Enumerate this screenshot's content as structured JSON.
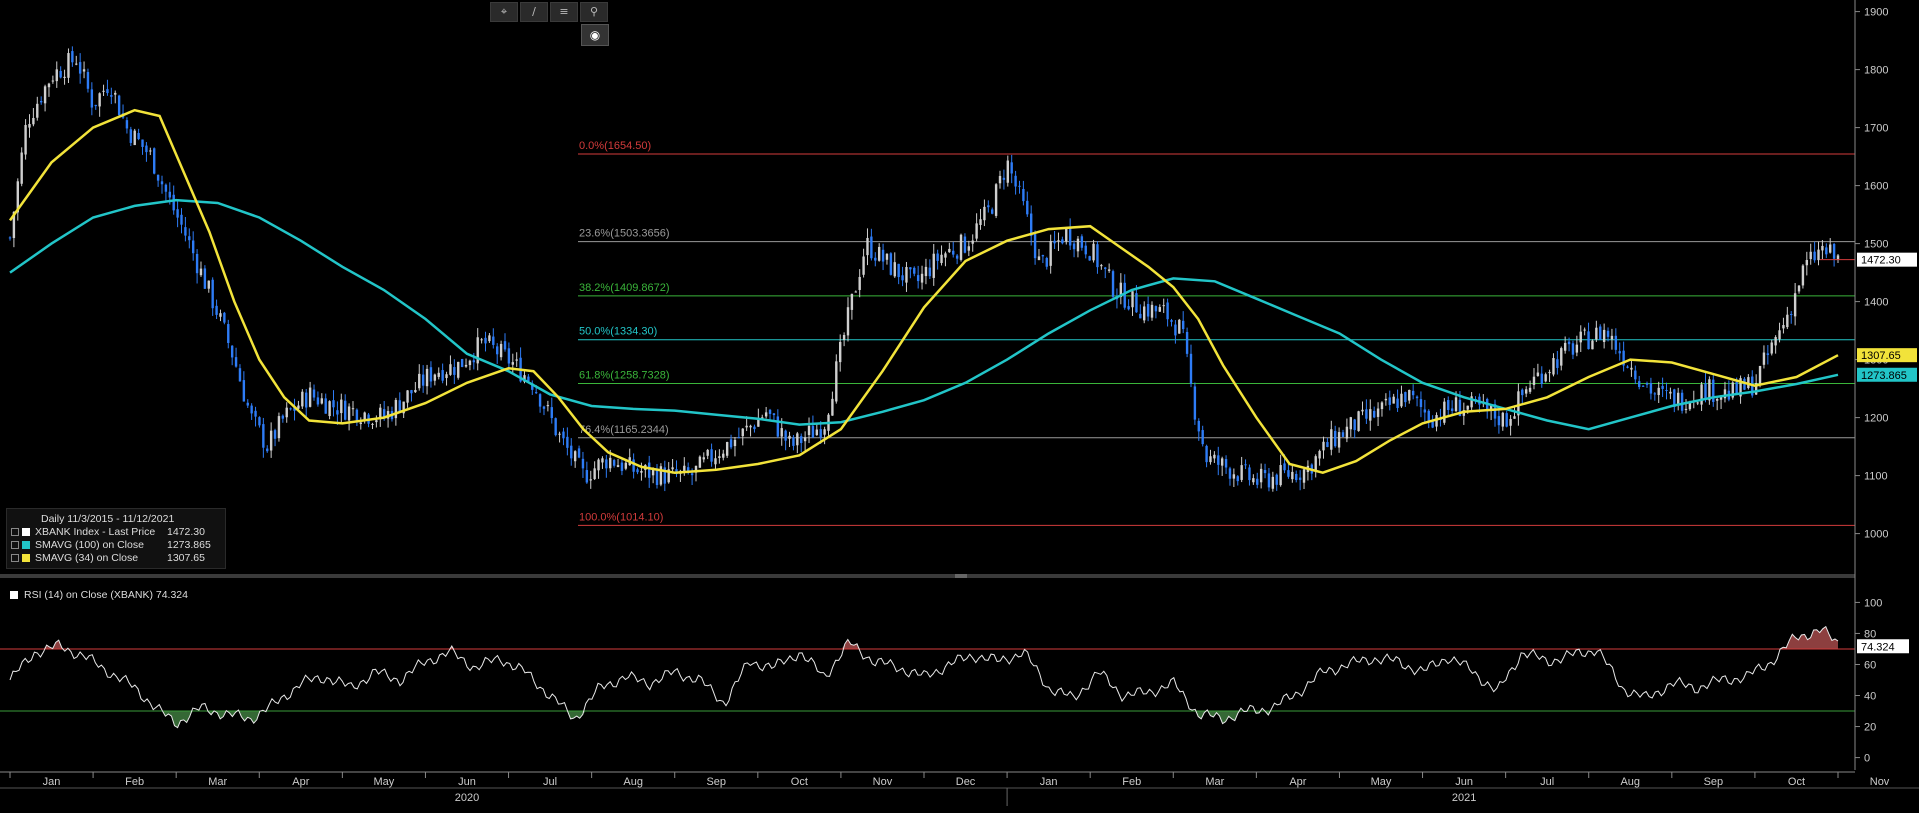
{
  "toolbar": {
    "tools": [
      {
        "name": "crosshair-tool",
        "icon": "crosshair-icon",
        "glyph": "⌖"
      },
      {
        "name": "draw-tool",
        "icon": "pencil-icon",
        "glyph": "∕"
      },
      {
        "name": "menu-tool",
        "icon": "menu-icon",
        "glyph": "≡"
      },
      {
        "name": "zoom-tool",
        "icon": "search-icon",
        "glyph": "⚲"
      }
    ],
    "active_tool_glyph": "◉"
  },
  "legend": {
    "header": "Daily 11/3/2015 - 11/12/2021",
    "items": [
      {
        "label": "XBANK Index - Last Price",
        "value": "1472.30",
        "color": "#ffffff"
      },
      {
        "label": "SMAVG (100)  on Close",
        "value": "1273.865",
        "color": "#22c5c8"
      },
      {
        "label": "SMAVG (34)  on Close",
        "value": "1307.65",
        "color": "#f2e33a"
      }
    ]
  },
  "rsi_legend": "RSI (14)  on Close (XBANK) 74.324",
  "colors": {
    "price_up": "#cfcfcf",
    "price_down": "#2e7cf6",
    "sma100": "#22c5c8",
    "sma34": "#f2e33a",
    "rsi_line": "#e8e8e8",
    "rsi_overbought": "#d33b3b",
    "rsi_oversold": "#3a9b3a",
    "fib_0": "#d33b3b",
    "fib_236": "#9a9a9a",
    "fib_382": "#3ab53a",
    "fib_50": "#22c5c8",
    "fib_618": "#3ab53a",
    "fib_764": "#9a9a9a",
    "fib_100": "#d33b3b"
  },
  "chart_data": [
    {
      "type": "candlestick",
      "title": "",
      "ylim": [
        920,
        1920
      ],
      "y_ticks": [
        1000,
        1100,
        1200,
        1300,
        1400,
        1500,
        1600,
        1700,
        1800,
        1900
      ],
      "x_month_labels": [
        "Jan",
        "Feb",
        "Mar",
        "Apr",
        "May",
        "Jun",
        "Jul",
        "Aug",
        "Sep",
        "Oct",
        "Nov",
        "Dec",
        "Jan",
        "Feb",
        "Mar",
        "Apr",
        "May",
        "Jun",
        "Jul",
        "Aug",
        "Sep",
        "Oct",
        "Nov"
      ],
      "x_year_labels": [
        {
          "label": "2020",
          "month_index": 5.5
        },
        {
          "label": "2021",
          "month_index": 17.5
        }
      ],
      "grid": false,
      "price_path_monthly": [
        {
          "m": 0.0,
          "v": 1510
        },
        {
          "m": 0.2,
          "v": 1710
        },
        {
          "m": 0.5,
          "v": 1790
        },
        {
          "m": 0.8,
          "v": 1820
        },
        {
          "m": 1.0,
          "v": 1740
        },
        {
          "m": 1.2,
          "v": 1780
        },
        {
          "m": 1.4,
          "v": 1700
        },
        {
          "m": 1.7,
          "v": 1650
        },
        {
          "m": 1.9,
          "v": 1580
        },
        {
          "m": 2.1,
          "v": 1520
        },
        {
          "m": 2.3,
          "v": 1450
        },
        {
          "m": 2.5,
          "v": 1380
        },
        {
          "m": 2.7,
          "v": 1300
        },
        {
          "m": 2.9,
          "v": 1200
        },
        {
          "m": 3.1,
          "v": 1150
        },
        {
          "m": 3.3,
          "v": 1200
        },
        {
          "m": 3.6,
          "v": 1240
        },
        {
          "m": 3.9,
          "v": 1220
        },
        {
          "m": 4.2,
          "v": 1210
        },
        {
          "m": 4.5,
          "v": 1200
        },
        {
          "m": 4.8,
          "v": 1240
        },
        {
          "m": 5.1,
          "v": 1280
        },
        {
          "m": 5.4,
          "v": 1290
        },
        {
          "m": 5.7,
          "v": 1330
        },
        {
          "m": 6.0,
          "v": 1300
        },
        {
          "m": 6.3,
          "v": 1260
        },
        {
          "m": 6.6,
          "v": 1170
        },
        {
          "m": 6.9,
          "v": 1100
        },
        {
          "m": 7.2,
          "v": 1130
        },
        {
          "m": 7.5,
          "v": 1110
        },
        {
          "m": 7.9,
          "v": 1100
        },
        {
          "m": 8.2,
          "v": 1100
        },
        {
          "m": 8.5,
          "v": 1140
        },
        {
          "m": 8.8,
          "v": 1170
        },
        {
          "m": 9.1,
          "v": 1210
        },
        {
          "m": 9.4,
          "v": 1150
        },
        {
          "m": 9.8,
          "v": 1190
        },
        {
          "m": 10.1,
          "v": 1380
        },
        {
          "m": 10.3,
          "v": 1500
        },
        {
          "m": 10.6,
          "v": 1460
        },
        {
          "m": 10.9,
          "v": 1430
        },
        {
          "m": 11.2,
          "v": 1480
        },
        {
          "m": 11.5,
          "v": 1500
        },
        {
          "m": 11.8,
          "v": 1560
        },
        {
          "m": 12.0,
          "v": 1640
        },
        {
          "m": 12.2,
          "v": 1560
        },
        {
          "m": 12.4,
          "v": 1460
        },
        {
          "m": 12.7,
          "v": 1520
        },
        {
          "m": 13.0,
          "v": 1490
        },
        {
          "m": 13.3,
          "v": 1420
        },
        {
          "m": 13.6,
          "v": 1390
        },
        {
          "m": 13.9,
          "v": 1380
        },
        {
          "m": 14.1,
          "v": 1350
        },
        {
          "m": 14.25,
          "v": 1220
        },
        {
          "m": 14.4,
          "v": 1130
        },
        {
          "m": 14.7,
          "v": 1110
        },
        {
          "m": 15.0,
          "v": 1090
        },
        {
          "m": 15.3,
          "v": 1100
        },
        {
          "m": 15.6,
          "v": 1110
        },
        {
          "m": 15.9,
          "v": 1160
        },
        {
          "m": 16.2,
          "v": 1190
        },
        {
          "m": 16.5,
          "v": 1210
        },
        {
          "m": 16.8,
          "v": 1240
        },
        {
          "m": 17.1,
          "v": 1200
        },
        {
          "m": 17.4,
          "v": 1220
        },
        {
          "m": 17.7,
          "v": 1215
        },
        {
          "m": 18.0,
          "v": 1195
        },
        {
          "m": 18.3,
          "v": 1260
        },
        {
          "m": 18.6,
          "v": 1300
        },
        {
          "m": 18.9,
          "v": 1330
        },
        {
          "m": 19.2,
          "v": 1350
        },
        {
          "m": 19.5,
          "v": 1290
        },
        {
          "m": 19.8,
          "v": 1240
        },
        {
          "m": 20.1,
          "v": 1230
        },
        {
          "m": 20.4,
          "v": 1250
        },
        {
          "m": 20.7,
          "v": 1240
        },
        {
          "m": 21.0,
          "v": 1260
        },
        {
          "m": 21.2,
          "v": 1320
        },
        {
          "m": 21.4,
          "v": 1380
        },
        {
          "m": 21.6,
          "v": 1460
        },
        {
          "m": 21.8,
          "v": 1490
        },
        {
          "m": 22.0,
          "v": 1472.3
        }
      ],
      "sma100_path": [
        {
          "m": 0.0,
          "v": 1450
        },
        {
          "m": 0.5,
          "v": 1500
        },
        {
          "m": 1.0,
          "v": 1545
        },
        {
          "m": 1.5,
          "v": 1565
        },
        {
          "m": 2.0,
          "v": 1575
        },
        {
          "m": 2.5,
          "v": 1570
        },
        {
          "m": 3.0,
          "v": 1545
        },
        {
          "m": 3.5,
          "v": 1505
        },
        {
          "m": 4.0,
          "v": 1460
        },
        {
          "m": 4.5,
          "v": 1420
        },
        {
          "m": 5.0,
          "v": 1370
        },
        {
          "m": 5.5,
          "v": 1310
        },
        {
          "m": 6.0,
          "v": 1280
        },
        {
          "m": 6.5,
          "v": 1240
        },
        {
          "m": 7.0,
          "v": 1220
        },
        {
          "m": 7.5,
          "v": 1215
        },
        {
          "m": 8.0,
          "v": 1212
        },
        {
          "m": 8.5,
          "v": 1205
        },
        {
          "m": 9.0,
          "v": 1198
        },
        {
          "m": 9.5,
          "v": 1188
        },
        {
          "m": 10.0,
          "v": 1192
        },
        {
          "m": 10.5,
          "v": 1210
        },
        {
          "m": 11.0,
          "v": 1230
        },
        {
          "m": 11.5,
          "v": 1260
        },
        {
          "m": 12.0,
          "v": 1300
        },
        {
          "m": 12.5,
          "v": 1345
        },
        {
          "m": 13.0,
          "v": 1385
        },
        {
          "m": 13.5,
          "v": 1420
        },
        {
          "m": 14.0,
          "v": 1440
        },
        {
          "m": 14.5,
          "v": 1435
        },
        {
          "m": 15.0,
          "v": 1405
        },
        {
          "m": 15.5,
          "v": 1375
        },
        {
          "m": 16.0,
          "v": 1345
        },
        {
          "m": 16.5,
          "v": 1300
        },
        {
          "m": 17.0,
          "v": 1260
        },
        {
          "m": 17.5,
          "v": 1235
        },
        {
          "m": 18.0,
          "v": 1215
        },
        {
          "m": 18.5,
          "v": 1195
        },
        {
          "m": 19.0,
          "v": 1180
        },
        {
          "m": 19.5,
          "v": 1200
        },
        {
          "m": 20.0,
          "v": 1220
        },
        {
          "m": 20.5,
          "v": 1235
        },
        {
          "m": 21.0,
          "v": 1245
        },
        {
          "m": 21.5,
          "v": 1258
        },
        {
          "m": 22.0,
          "v": 1273.865
        }
      ],
      "sma34_path": [
        {
          "m": 0.0,
          "v": 1540
        },
        {
          "m": 0.5,
          "v": 1640
        },
        {
          "m": 1.0,
          "v": 1700
        },
        {
          "m": 1.5,
          "v": 1730
        },
        {
          "m": 1.8,
          "v": 1720
        },
        {
          "m": 2.1,
          "v": 1620
        },
        {
          "m": 2.4,
          "v": 1520
        },
        {
          "m": 2.7,
          "v": 1400
        },
        {
          "m": 3.0,
          "v": 1300
        },
        {
          "m": 3.3,
          "v": 1235
        },
        {
          "m": 3.6,
          "v": 1195
        },
        {
          "m": 4.0,
          "v": 1190
        },
        {
          "m": 4.5,
          "v": 1200
        },
        {
          "m": 5.0,
          "v": 1225
        },
        {
          "m": 5.5,
          "v": 1260
        },
        {
          "m": 6.0,
          "v": 1285
        },
        {
          "m": 6.3,
          "v": 1280
        },
        {
          "m": 6.6,
          "v": 1235
        },
        {
          "m": 6.9,
          "v": 1180
        },
        {
          "m": 7.2,
          "v": 1140
        },
        {
          "m": 7.6,
          "v": 1115
        },
        {
          "m": 8.0,
          "v": 1105
        },
        {
          "m": 8.5,
          "v": 1110
        },
        {
          "m": 9.0,
          "v": 1120
        },
        {
          "m": 9.5,
          "v": 1135
        },
        {
          "m": 10.0,
          "v": 1180
        },
        {
          "m": 10.5,
          "v": 1280
        },
        {
          "m": 11.0,
          "v": 1390
        },
        {
          "m": 11.5,
          "v": 1470
        },
        {
          "m": 12.0,
          "v": 1505
        },
        {
          "m": 12.5,
          "v": 1525
        },
        {
          "m": 13.0,
          "v": 1530
        },
        {
          "m": 13.3,
          "v": 1500
        },
        {
          "m": 13.7,
          "v": 1460
        },
        {
          "m": 14.0,
          "v": 1425
        },
        {
          "m": 14.3,
          "v": 1370
        },
        {
          "m": 14.6,
          "v": 1290
        },
        {
          "m": 15.0,
          "v": 1200
        },
        {
          "m": 15.4,
          "v": 1120
        },
        {
          "m": 15.8,
          "v": 1105
        },
        {
          "m": 16.2,
          "v": 1125
        },
        {
          "m": 16.6,
          "v": 1160
        },
        {
          "m": 17.0,
          "v": 1190
        },
        {
          "m": 17.5,
          "v": 1210
        },
        {
          "m": 18.0,
          "v": 1215
        },
        {
          "m": 18.5,
          "v": 1235
        },
        {
          "m": 19.0,
          "v": 1270
        },
        {
          "m": 19.5,
          "v": 1300
        },
        {
          "m": 20.0,
          "v": 1295
        },
        {
          "m": 20.5,
          "v": 1275
        },
        {
          "m": 21.0,
          "v": 1255
        },
        {
          "m": 21.5,
          "v": 1270
        },
        {
          "m": 22.0,
          "v": 1307.65
        }
      ],
      "fibonacci": [
        {
          "label": "0.0%(1654.50)",
          "value": 1654.5,
          "color_key": "fib_0"
        },
        {
          "label": "23.6%(1503.3656)",
          "value": 1503.3656,
          "color_key": "fib_236"
        },
        {
          "label": "38.2%(1409.8672)",
          "value": 1409.8672,
          "color_key": "fib_382"
        },
        {
          "label": "50.0%(1334.30)",
          "value": 1334.3,
          "color_key": "fib_50"
        },
        {
          "label": "61.8%(1258.7328)",
          "value": 1258.7328,
          "color_key": "fib_618"
        },
        {
          "label": "76.4%(1165.2344)",
          "value": 1165.2344,
          "color_key": "fib_764"
        },
        {
          "label": "100.0%(1014.10)",
          "value": 1014.1,
          "color_key": "fib_100"
        }
      ],
      "value_tags": [
        {
          "label": "1472.30",
          "value": 1472.3,
          "bg": "#ffffff",
          "fg": "#000000"
        },
        {
          "label": "1307.65",
          "value": 1307.65,
          "bg": "#f2e33a",
          "fg": "#000000"
        },
        {
          "label": "1273.865",
          "value": 1273.865,
          "bg": "#22c5c8",
          "fg": "#000000"
        }
      ]
    },
    {
      "type": "line",
      "title": "",
      "ylim": [
        -8,
        108
      ],
      "y_ticks": [
        0,
        20,
        40,
        60,
        80,
        100
      ],
      "overbought": 70,
      "oversold": 30,
      "value_tag": {
        "label": "74.324",
        "value": 74.324
      },
      "rsi_path": [
        {
          "m": 0.0,
          "v": 50
        },
        {
          "m": 0.3,
          "v": 68
        },
        {
          "m": 0.6,
          "v": 72
        },
        {
          "m": 0.9,
          "v": 65
        },
        {
          "m": 1.2,
          "v": 55
        },
        {
          "m": 1.5,
          "v": 45
        },
        {
          "m": 1.8,
          "v": 30
        },
        {
          "m": 2.0,
          "v": 22
        },
        {
          "m": 2.3,
          "v": 32
        },
        {
          "m": 2.6,
          "v": 28
        },
        {
          "m": 2.9,
          "v": 25
        },
        {
          "m": 3.2,
          "v": 35
        },
        {
          "m": 3.5,
          "v": 48
        },
        {
          "m": 3.8,
          "v": 52
        },
        {
          "m": 4.1,
          "v": 45
        },
        {
          "m": 4.4,
          "v": 55
        },
        {
          "m": 4.7,
          "v": 50
        },
        {
          "m": 5.0,
          "v": 62
        },
        {
          "m": 5.3,
          "v": 68
        },
        {
          "m": 5.6,
          "v": 58
        },
        {
          "m": 5.9,
          "v": 64
        },
        {
          "m": 6.2,
          "v": 55
        },
        {
          "m": 6.5,
          "v": 40
        },
        {
          "m": 6.8,
          "v": 25
        },
        {
          "m": 7.1,
          "v": 45
        },
        {
          "m": 7.4,
          "v": 52
        },
        {
          "m": 7.7,
          "v": 48
        },
        {
          "m": 8.0,
          "v": 55
        },
        {
          "m": 8.3,
          "v": 50
        },
        {
          "m": 8.6,
          "v": 35
        },
        {
          "m": 8.9,
          "v": 62
        },
        {
          "m": 9.2,
          "v": 58
        },
        {
          "m": 9.5,
          "v": 68
        },
        {
          "m": 9.8,
          "v": 52
        },
        {
          "m": 10.1,
          "v": 74
        },
        {
          "m": 10.4,
          "v": 62
        },
        {
          "m": 10.7,
          "v": 58
        },
        {
          "m": 11.0,
          "v": 52
        },
        {
          "m": 11.3,
          "v": 60
        },
        {
          "m": 11.6,
          "v": 66
        },
        {
          "m": 11.9,
          "v": 62
        },
        {
          "m": 12.2,
          "v": 68
        },
        {
          "m": 12.5,
          "v": 45
        },
        {
          "m": 12.8,
          "v": 38
        },
        {
          "m": 13.1,
          "v": 55
        },
        {
          "m": 13.4,
          "v": 40
        },
        {
          "m": 13.7,
          "v": 42
        },
        {
          "m": 14.0,
          "v": 48
        },
        {
          "m": 14.3,
          "v": 28
        },
        {
          "m": 14.6,
          "v": 25
        },
        {
          "m": 14.9,
          "v": 30
        },
        {
          "m": 15.2,
          "v": 32
        },
        {
          "m": 15.5,
          "v": 42
        },
        {
          "m": 15.8,
          "v": 55
        },
        {
          "m": 16.1,
          "v": 60
        },
        {
          "m": 16.4,
          "v": 64
        },
        {
          "m": 16.7,
          "v": 62
        },
        {
          "m": 17.0,
          "v": 55
        },
        {
          "m": 17.3,
          "v": 65
        },
        {
          "m": 17.6,
          "v": 56
        },
        {
          "m": 17.9,
          "v": 42
        },
        {
          "m": 18.2,
          "v": 68
        },
        {
          "m": 18.5,
          "v": 62
        },
        {
          "m": 18.8,
          "v": 66
        },
        {
          "m": 19.1,
          "v": 70
        },
        {
          "m": 19.4,
          "v": 45
        },
        {
          "m": 19.7,
          "v": 38
        },
        {
          "m": 20.0,
          "v": 48
        },
        {
          "m": 20.3,
          "v": 45
        },
        {
          "m": 20.6,
          "v": 50
        },
        {
          "m": 20.9,
          "v": 52
        },
        {
          "m": 21.2,
          "v": 62
        },
        {
          "m": 21.5,
          "v": 78
        },
        {
          "m": 21.8,
          "v": 82
        },
        {
          "m": 22.0,
          "v": 74.324
        }
      ]
    }
  ]
}
